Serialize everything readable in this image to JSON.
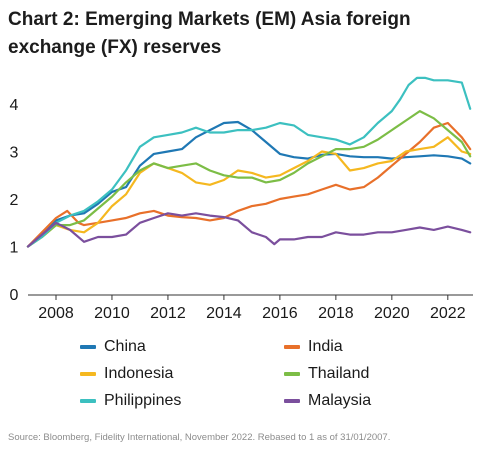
{
  "title": "Chart 2: Emerging Markets (EM) Asia foreign exchange (FX) reserves",
  "source": "Source: Bloomberg, Fidelity International, November 2022. Rebased to 1 as of 31/01/2007.",
  "chart_data": {
    "type": "line",
    "title": "Chart 2: Emerging Markets (EM) Asia foreign exchange (FX) reserves",
    "xlabel": "",
    "ylabel": "",
    "xlim": [
      2007.0,
      2022.9
    ],
    "ylim": [
      0,
      4.8
    ],
    "x_ticks": [
      2008,
      2010,
      2012,
      2014,
      2016,
      2018,
      2020,
      2022
    ],
    "y_ticks": [
      0,
      1,
      2,
      3,
      4
    ],
    "grid": false,
    "legend_position": "bottom",
    "series": [
      {
        "name": "China",
        "color": "#1f78b4",
        "x": [
          2007.0,
          2007.5,
          2008.0,
          2008.5,
          2009.0,
          2009.5,
          2010.0,
          2010.5,
          2011.0,
          2011.5,
          2012.0,
          2012.5,
          2013.0,
          2013.5,
          2014.0,
          2014.5,
          2015.0,
          2015.5,
          2016.0,
          2016.5,
          2017.0,
          2017.5,
          2018.0,
          2018.5,
          2019.0,
          2019.5,
          2020.0,
          2020.5,
          2021.0,
          2021.5,
          2022.0,
          2022.5,
          2022.8
        ],
        "y": [
          1.0,
          1.25,
          1.55,
          1.65,
          1.7,
          1.9,
          2.15,
          2.25,
          2.7,
          2.95,
          3.0,
          3.05,
          3.3,
          3.45,
          3.6,
          3.62,
          3.45,
          3.2,
          2.95,
          2.88,
          2.85,
          2.93,
          2.95,
          2.9,
          2.88,
          2.88,
          2.85,
          2.88,
          2.9,
          2.92,
          2.9,
          2.85,
          2.75
        ]
      },
      {
        "name": "India",
        "color": "#e8702a",
        "x": [
          2007.0,
          2007.5,
          2008.0,
          2008.4,
          2008.8,
          2009.0,
          2009.5,
          2010.0,
          2010.5,
          2011.0,
          2011.5,
          2012.0,
          2012.5,
          2013.0,
          2013.5,
          2014.0,
          2014.5,
          2015.0,
          2015.5,
          2016.0,
          2016.5,
          2017.0,
          2017.5,
          2018.0,
          2018.5,
          2019.0,
          2019.5,
          2020.0,
          2020.5,
          2021.0,
          2021.5,
          2022.0,
          2022.5,
          2022.8
        ],
        "y": [
          1.0,
          1.3,
          1.6,
          1.75,
          1.5,
          1.45,
          1.5,
          1.55,
          1.6,
          1.7,
          1.75,
          1.65,
          1.62,
          1.6,
          1.55,
          1.6,
          1.75,
          1.85,
          1.9,
          2.0,
          2.05,
          2.1,
          2.2,
          2.3,
          2.2,
          2.25,
          2.45,
          2.7,
          2.95,
          3.2,
          3.5,
          3.6,
          3.3,
          3.05
        ]
      },
      {
        "name": "Indonesia",
        "color": "#f5b820",
        "x": [
          2007.0,
          2007.5,
          2008.0,
          2008.5,
          2009.0,
          2009.5,
          2010.0,
          2010.5,
          2011.0,
          2011.5,
          2012.0,
          2012.5,
          2013.0,
          2013.5,
          2014.0,
          2014.5,
          2015.0,
          2015.5,
          2016.0,
          2016.5,
          2017.0,
          2017.5,
          2018.0,
          2018.5,
          2019.0,
          2019.5,
          2020.0,
          2020.5,
          2021.0,
          2021.5,
          2022.0,
          2022.5,
          2022.8
        ],
        "y": [
          1.0,
          1.2,
          1.45,
          1.35,
          1.3,
          1.5,
          1.85,
          2.1,
          2.55,
          2.75,
          2.65,
          2.55,
          2.35,
          2.3,
          2.4,
          2.6,
          2.55,
          2.45,
          2.5,
          2.65,
          2.8,
          3.0,
          2.95,
          2.6,
          2.65,
          2.75,
          2.8,
          3.0,
          3.05,
          3.1,
          3.3,
          3.0,
          2.95
        ]
      },
      {
        "name": "Thailand",
        "color": "#7cbd46",
        "x": [
          2007.0,
          2007.5,
          2008.0,
          2008.5,
          2009.0,
          2009.5,
          2010.0,
          2010.5,
          2011.0,
          2011.5,
          2012.0,
          2012.5,
          2013.0,
          2013.5,
          2014.0,
          2014.5,
          2015.0,
          2015.5,
          2016.0,
          2016.5,
          2017.0,
          2017.5,
          2018.0,
          2018.5,
          2019.0,
          2019.5,
          2020.0,
          2020.5,
          2021.0,
          2021.5,
          2022.0,
          2022.5,
          2022.8
        ],
        "y": [
          1.0,
          1.2,
          1.45,
          1.45,
          1.55,
          1.8,
          2.05,
          2.35,
          2.6,
          2.75,
          2.65,
          2.7,
          2.75,
          2.6,
          2.5,
          2.45,
          2.45,
          2.35,
          2.4,
          2.55,
          2.75,
          2.9,
          3.05,
          3.05,
          3.1,
          3.25,
          3.45,
          3.65,
          3.85,
          3.7,
          3.45,
          3.2,
          2.9
        ]
      },
      {
        "name": "Philippines",
        "color": "#3cc0c0",
        "x": [
          2007.0,
          2007.5,
          2008.0,
          2008.5,
          2009.0,
          2009.5,
          2010.0,
          2010.5,
          2011.0,
          2011.5,
          2012.0,
          2012.5,
          2013.0,
          2013.5,
          2014.0,
          2014.5,
          2015.0,
          2015.5,
          2016.0,
          2016.5,
          2017.0,
          2017.5,
          2018.0,
          2018.5,
          2019.0,
          2019.5,
          2020.0,
          2020.3,
          2020.6,
          2020.9,
          2021.2,
          2021.5,
          2022.0,
          2022.5,
          2022.8
        ],
        "y": [
          1.0,
          1.2,
          1.5,
          1.65,
          1.75,
          1.95,
          2.2,
          2.6,
          3.1,
          3.3,
          3.35,
          3.4,
          3.5,
          3.4,
          3.4,
          3.45,
          3.45,
          3.5,
          3.6,
          3.55,
          3.35,
          3.3,
          3.25,
          3.15,
          3.3,
          3.6,
          3.85,
          4.1,
          4.4,
          4.55,
          4.55,
          4.5,
          4.5,
          4.45,
          3.9
        ]
      },
      {
        "name": "Malaysia",
        "color": "#7b4f9d",
        "x": [
          2007.0,
          2007.5,
          2008.0,
          2008.5,
          2009.0,
          2009.5,
          2010.0,
          2010.5,
          2011.0,
          2011.5,
          2012.0,
          2012.5,
          2013.0,
          2013.5,
          2014.0,
          2014.5,
          2015.0,
          2015.5,
          2015.8,
          2016.0,
          2016.5,
          2017.0,
          2017.5,
          2018.0,
          2018.5,
          2019.0,
          2019.5,
          2020.0,
          2020.5,
          2021.0,
          2021.5,
          2022.0,
          2022.5,
          2022.8
        ],
        "y": [
          1.0,
          1.25,
          1.5,
          1.35,
          1.1,
          1.2,
          1.2,
          1.25,
          1.5,
          1.6,
          1.7,
          1.65,
          1.7,
          1.65,
          1.62,
          1.55,
          1.3,
          1.2,
          1.05,
          1.15,
          1.15,
          1.2,
          1.2,
          1.3,
          1.25,
          1.25,
          1.3,
          1.3,
          1.35,
          1.4,
          1.35,
          1.42,
          1.35,
          1.3
        ]
      }
    ]
  }
}
